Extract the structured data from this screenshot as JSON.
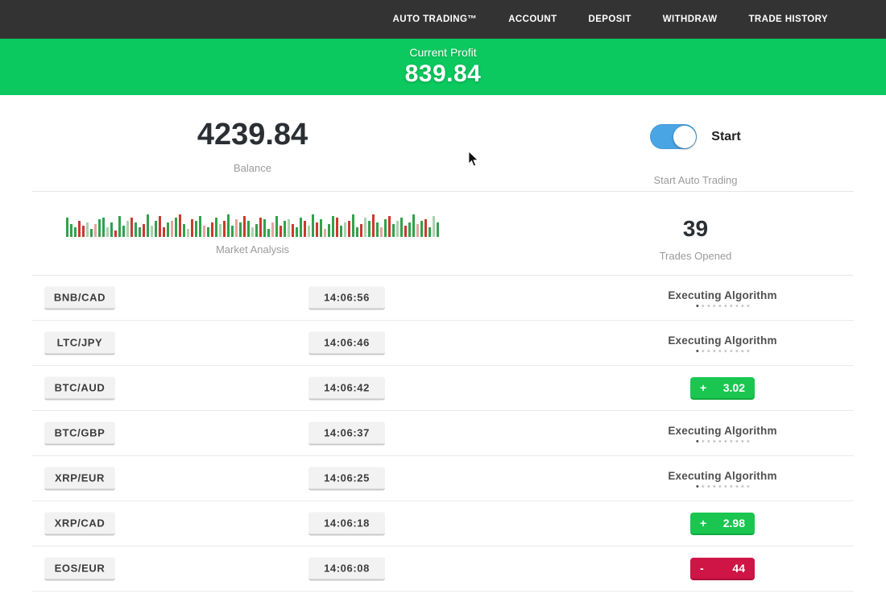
{
  "nav": {
    "items": [
      {
        "label": "AUTO TRADING™"
      },
      {
        "label": "ACCOUNT"
      },
      {
        "label": "DEPOSIT"
      },
      {
        "label": "WITHDRAW"
      },
      {
        "label": "TRADE HISTORY"
      }
    ]
  },
  "profit_banner": {
    "label": "Current Profit",
    "value": "839.84"
  },
  "balance": {
    "value": "4239.84",
    "label": "Balance"
  },
  "auto_trading": {
    "toggle_label": "Start",
    "caption": "Start Auto Trading",
    "state": "on"
  },
  "market_analysis": {
    "label": "Market Analysis",
    "bars": [
      [
        24,
        "g"
      ],
      [
        16,
        "g"
      ],
      [
        12,
        "g"
      ],
      [
        20,
        "r"
      ],
      [
        14,
        "r"
      ],
      [
        18,
        "G"
      ],
      [
        10,
        "g"
      ],
      [
        16,
        "R"
      ],
      [
        22,
        "g"
      ],
      [
        24,
        "g"
      ],
      [
        12,
        "G"
      ],
      [
        18,
        "g"
      ],
      [
        8,
        "r"
      ],
      [
        26,
        "g"
      ],
      [
        14,
        "g"
      ],
      [
        20,
        "G"
      ],
      [
        24,
        "r"
      ],
      [
        18,
        "g"
      ],
      [
        12,
        "g"
      ],
      [
        16,
        "r"
      ],
      [
        28,
        "g"
      ],
      [
        14,
        "G"
      ],
      [
        20,
        "g"
      ],
      [
        26,
        "r"
      ],
      [
        12,
        "r"
      ],
      [
        18,
        "g"
      ],
      [
        20,
        "R"
      ],
      [
        24,
        "g"
      ],
      [
        28,
        "r"
      ],
      [
        16,
        "g"
      ],
      [
        10,
        "G"
      ],
      [
        22,
        "r"
      ],
      [
        20,
        "g"
      ],
      [
        26,
        "g"
      ],
      [
        14,
        "R"
      ],
      [
        12,
        "g"
      ],
      [
        18,
        "r"
      ],
      [
        24,
        "g"
      ],
      [
        16,
        "G"
      ],
      [
        20,
        "r"
      ],
      [
        28,
        "g"
      ],
      [
        14,
        "g"
      ],
      [
        22,
        "R"
      ],
      [
        18,
        "g"
      ],
      [
        26,
        "r"
      ],
      [
        20,
        "g"
      ],
      [
        12,
        "G"
      ],
      [
        16,
        "g"
      ],
      [
        24,
        "r"
      ],
      [
        22,
        "g"
      ],
      [
        10,
        "g"
      ],
      [
        18,
        "R"
      ],
      [
        26,
        "g"
      ],
      [
        14,
        "r"
      ],
      [
        20,
        "g"
      ],
      [
        22,
        "G"
      ],
      [
        16,
        "r"
      ],
      [
        12,
        "g"
      ],
      [
        24,
        "g"
      ],
      [
        20,
        "r"
      ],
      [
        14,
        "G"
      ],
      [
        28,
        "g"
      ],
      [
        18,
        "r"
      ],
      [
        22,
        "g"
      ],
      [
        10,
        "R"
      ],
      [
        16,
        "g"
      ],
      [
        26,
        "g"
      ],
      [
        24,
        "r"
      ],
      [
        14,
        "g"
      ],
      [
        18,
        "G"
      ],
      [
        20,
        "r"
      ],
      [
        28,
        "g"
      ],
      [
        12,
        "g"
      ],
      [
        16,
        "r"
      ],
      [
        24,
        "G"
      ],
      [
        20,
        "g"
      ],
      [
        28,
        "r"
      ],
      [
        18,
        "g"
      ],
      [
        12,
        "R"
      ],
      [
        22,
        "g"
      ],
      [
        26,
        "r"
      ],
      [
        16,
        "g"
      ],
      [
        20,
        "G"
      ],
      [
        24,
        "g"
      ],
      [
        14,
        "r"
      ],
      [
        18,
        "g"
      ],
      [
        28,
        "g"
      ],
      [
        16,
        "R"
      ],
      [
        20,
        "g"
      ],
      [
        22,
        "r"
      ],
      [
        12,
        "g"
      ],
      [
        26,
        "G"
      ],
      [
        18,
        "g"
      ]
    ]
  },
  "trades_opened": {
    "value": "39",
    "label": "Trades Opened"
  },
  "trades": [
    {
      "pair": "BNB/CAD",
      "time": "14:06:56",
      "status": "Executing Algorithm"
    },
    {
      "pair": "LTC/JPY",
      "time": "14:06:46",
      "status": "Executing Algorithm"
    },
    {
      "pair": "BTC/AUD",
      "time": "14:06:42",
      "result": {
        "sign": "+",
        "value": "3.02",
        "type": "profit"
      }
    },
    {
      "pair": "BTC/GBP",
      "time": "14:06:37",
      "status": "Executing Algorithm"
    },
    {
      "pair": "XRP/EUR",
      "time": "14:06:25",
      "status": "Executing Algorithm"
    },
    {
      "pair": "XRP/CAD",
      "time": "14:06:18",
      "result": {
        "sign": "+",
        "value": "2.98",
        "type": "profit"
      }
    },
    {
      "pair": "EOS/EUR",
      "time": "14:06:08",
      "result": {
        "sign": "-",
        "value": "44",
        "type": "loss"
      }
    }
  ],
  "colors": {
    "nav_background": "#333333",
    "banner_green": "#0bc95e",
    "profit_badge_green": "#1ac650",
    "loss_badge_red": "#cf1446",
    "toggle_blue": "#4aa5e4"
  },
  "progress_dots_count": 10
}
